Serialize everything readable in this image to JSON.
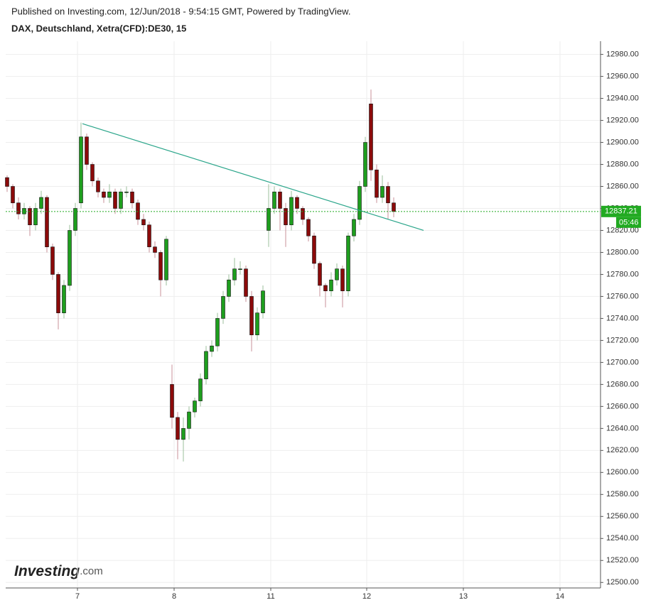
{
  "header": {
    "published": "Published on Investing.com, 12/Jun/2018 - 9:54:15 GMT, Powered by TradingView.",
    "symbol": "DAX, Deutschland, Xetra(CFD):DE30, 15"
  },
  "logo": {
    "brand": "Investing",
    "suffix": ".com"
  },
  "chart_data": {
    "type": "candlestick",
    "up_color": "#1e9e1e",
    "down_color": "#8b0a0a",
    "ylim": [
      12495,
      12992
    ],
    "yticks": [
      {
        "value": 12500,
        "label": "12500.00"
      },
      {
        "value": 12520,
        "label": "12520.00"
      },
      {
        "value": 12540,
        "label": "12540.00"
      },
      {
        "value": 12560,
        "label": "12560.00"
      },
      {
        "value": 12580,
        "label": "12580.00"
      },
      {
        "value": 12600,
        "label": "12600.00"
      },
      {
        "value": 12620,
        "label": "12620.00"
      },
      {
        "value": 12640,
        "label": "12640.00"
      },
      {
        "value": 12660,
        "label": "12660.00"
      },
      {
        "value": 12680,
        "label": "12680.00"
      },
      {
        "value": 12700,
        "label": "12700.00"
      },
      {
        "value": 12720,
        "label": "12720.00"
      },
      {
        "value": 12740,
        "label": "12740.00"
      },
      {
        "value": 12760,
        "label": "12760.00"
      },
      {
        "value": 12780,
        "label": "12780.00"
      },
      {
        "value": 12800,
        "label": "12800.00"
      },
      {
        "value": 12820,
        "label": "12820.00"
      },
      {
        "value": 12840,
        "label": "12840.00"
      },
      {
        "value": 12860,
        "label": "12860.00"
      },
      {
        "value": 12880,
        "label": "12880.00"
      },
      {
        "value": 12900,
        "label": "12900.00"
      },
      {
        "value": 12920,
        "label": "12920.00"
      },
      {
        "value": 12940,
        "label": "12940.00"
      },
      {
        "value": 12960,
        "label": "12960.00"
      },
      {
        "value": 12980,
        "label": "12980.00"
      }
    ],
    "xlim": [
      -0.25,
      104.375
    ],
    "xticks": [
      {
        "value": 12.375,
        "label": "7"
      },
      {
        "value": 29.375,
        "label": "8"
      },
      {
        "value": 46.375,
        "label": "11"
      },
      {
        "value": 63.25,
        "label": "12"
      },
      {
        "value": 80.25,
        "label": "13"
      },
      {
        "value": 97.25,
        "label": "14"
      }
    ],
    "open": [
      12868,
      12860,
      12845,
      12835,
      12840,
      12825,
      12840,
      12850,
      12805,
      12780,
      12745,
      12770,
      12820,
      12845,
      12905,
      12880,
      12865,
      12855,
      12850,
      12855,
      12840,
      12855,
      12855,
      12845,
      12830,
      12825,
      12805,
      12800,
      12775,
      12680,
      12650,
      12630,
      12640,
      12655,
      12665,
      12685,
      12710,
      12715,
      12740,
      12760,
      12775,
      12785,
      12785,
      12760,
      12725,
      12745,
      12820,
      12840,
      12855,
      12840,
      12825,
      12850,
      12840,
      12830,
      12815,
      12790,
      12770,
      12765,
      12775,
      12785,
      12765,
      12815,
      12830,
      12860,
      12935,
      12875,
      12850,
      12860,
      12845
    ],
    "high": [
      12870,
      12862,
      12850,
      12845,
      12842,
      12845,
      12856,
      12852,
      12808,
      12782,
      12775,
      12825,
      12845,
      12918,
      12908,
      12882,
      12868,
      12858,
      12862,
      12858,
      12858,
      12860,
      12858,
      12848,
      12835,
      12828,
      12810,
      12802,
      12815,
      12698,
      12655,
      12650,
      12660,
      12668,
      12690,
      12715,
      12720,
      12745,
      12765,
      12780,
      12795,
      12792,
      12788,
      12765,
      12750,
      12770,
      12862,
      12860,
      12858,
      12845,
      12856,
      12852,
      12842,
      12832,
      12818,
      12792,
      12772,
      12782,
      12790,
      12788,
      12818,
      12835,
      12865,
      12905,
      12948,
      12880,
      12870,
      12864,
      12850
    ],
    "low": [
      12855,
      12840,
      12830,
      12830,
      12815,
      12820,
      12835,
      12800,
      12775,
      12730,
      12740,
      12765,
      12815,
      12840,
      12875,
      12860,
      12850,
      12845,
      12845,
      12835,
      12835,
      12850,
      12840,
      12825,
      12820,
      12800,
      12795,
      12760,
      12770,
      12640,
      12612,
      12610,
      12630,
      12650,
      12660,
      12680,
      12705,
      12710,
      12735,
      12755,
      12770,
      12780,
      12755,
      12710,
      12720,
      12740,
      12805,
      12835,
      12820,
      12805,
      12820,
      12835,
      12825,
      12810,
      12785,
      12760,
      12750,
      12760,
      12770,
      12750,
      12760,
      12810,
      12825,
      12855,
      12865,
      12845,
      12845,
      12830,
      12832
    ],
    "close": [
      12860,
      12845,
      12835,
      12840,
      12825,
      12840,
      12850,
      12805,
      12780,
      12745,
      12770,
      12820,
      12840,
      12905,
      12880,
      12865,
      12855,
      12850,
      12855,
      12840,
      12855,
      12855,
      12845,
      12830,
      12825,
      12805,
      12800,
      12775,
      12812,
      12650,
      12630,
      12640,
      12655,
      12665,
      12685,
      12710,
      12715,
      12740,
      12760,
      12775,
      12785,
      12785,
      12760,
      12725,
      12745,
      12765,
      12840,
      12855,
      12840,
      12825,
      12850,
      12840,
      12830,
      12815,
      12790,
      12770,
      12765,
      12775,
      12785,
      12765,
      12815,
      12830,
      12860,
      12900,
      12875,
      12850,
      12860,
      12845,
      12837.21
    ],
    "last_price": {
      "value": 12837.21,
      "label": "12837.21",
      "countdown": "05:46",
      "color": "#22aa22"
    },
    "trendline": {
      "x": [
        13.25,
        73.25
      ],
      "y": [
        12917,
        12820
      ],
      "color": "#2aa58a"
    }
  }
}
